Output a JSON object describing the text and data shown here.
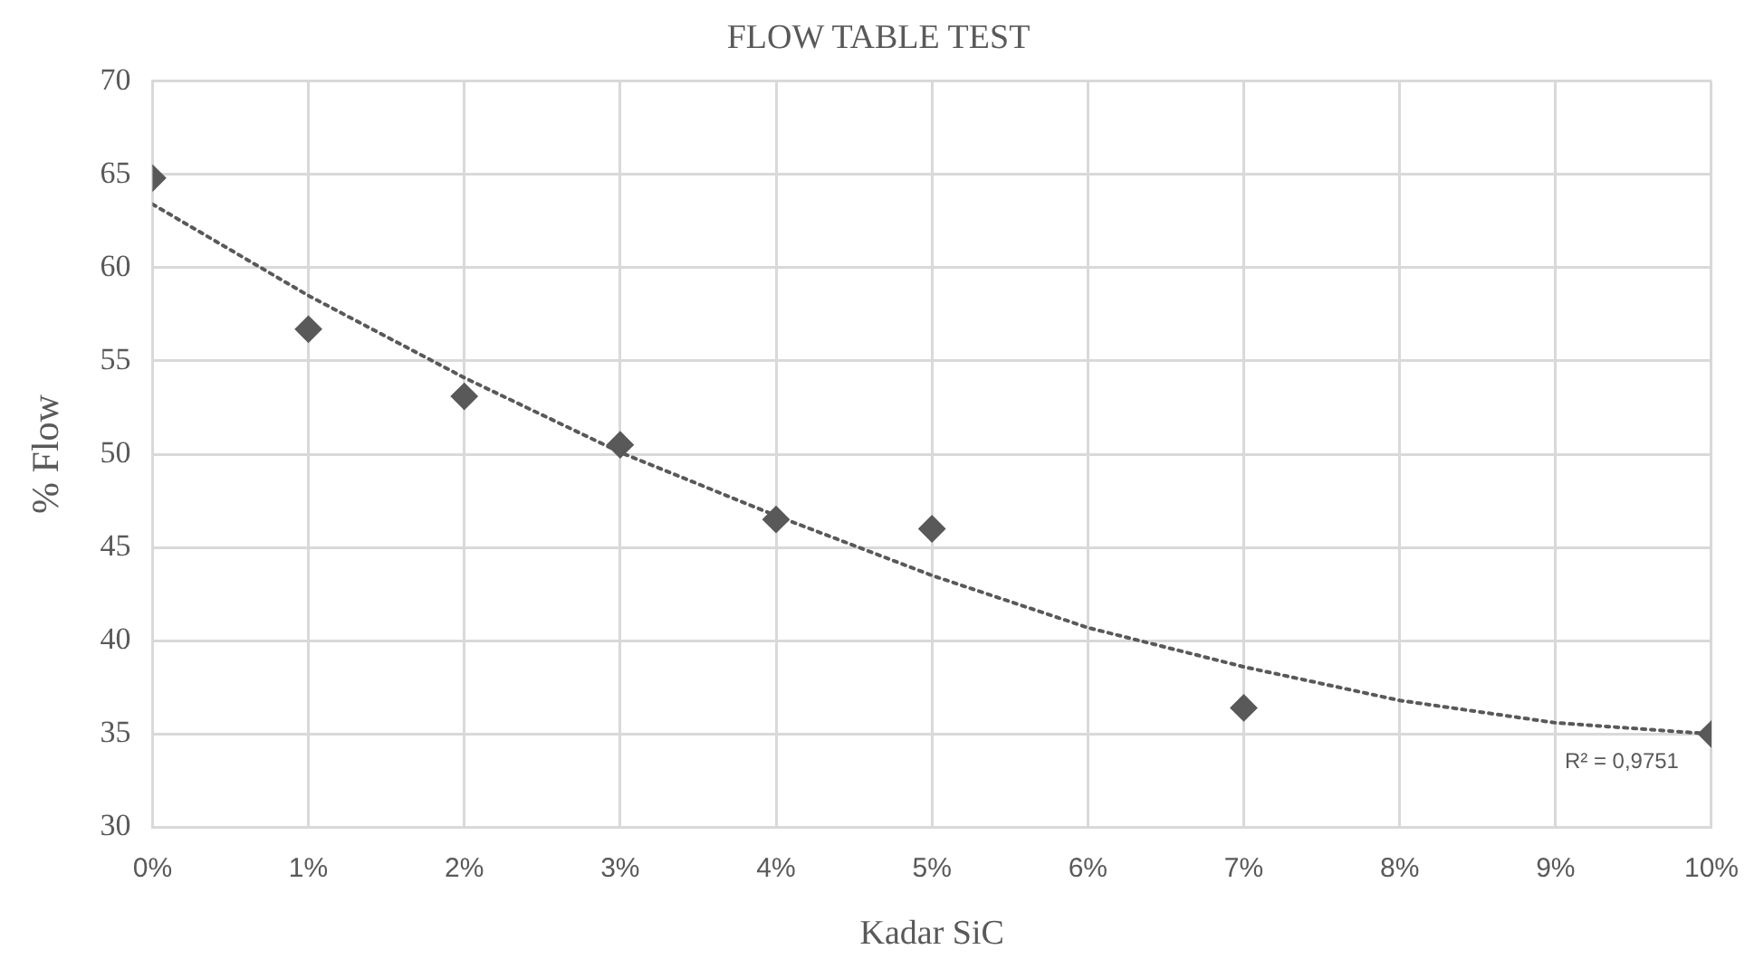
{
  "chart_data": {
    "type": "scatter",
    "title": "FLOW TABLE TEST",
    "xlabel": "Kadar SiC",
    "ylabel": "% Flow",
    "series": [
      {
        "type": "scatter",
        "color": "#595959",
        "marker": "diamond",
        "x": [
          0,
          1,
          2,
          3,
          4,
          5,
          7,
          10
        ],
        "values": [
          64.8,
          56.7,
          53.1,
          50.5,
          46.5,
          46.0,
          36.4,
          35.0
        ]
      },
      {
        "type": "line",
        "color": "#595959",
        "marker": "none",
        "line_style": "dotted",
        "x": [
          0,
          1,
          2,
          3,
          4,
          5,
          6,
          7,
          8,
          9,
          10
        ],
        "values": [
          63.4,
          58.5,
          54.1,
          50.1,
          46.7,
          43.5,
          40.7,
          38.6,
          36.8,
          35.6,
          35.0
        ]
      }
    ],
    "xlim": [
      0,
      10
    ],
    "xticks": [
      {
        "value": 0,
        "label": "0%"
      },
      {
        "value": 1,
        "label": "1%"
      },
      {
        "value": 2,
        "label": "2%"
      },
      {
        "value": 3,
        "label": "3%"
      },
      {
        "value": 4,
        "label": "4%"
      },
      {
        "value": 5,
        "label": "5%"
      },
      {
        "value": 6,
        "label": "6%"
      },
      {
        "value": 7,
        "label": "7%"
      },
      {
        "value": 8,
        "label": "8%"
      },
      {
        "value": 9,
        "label": "9%"
      },
      {
        "value": 10,
        "label": "10%"
      }
    ],
    "ylim": [
      30,
      70
    ],
    "yticks": [
      30,
      35,
      40,
      45,
      50,
      55,
      60,
      65,
      70
    ],
    "annotations": [
      "R² = 0,9751"
    ],
    "grid": true,
    "legend": false
  }
}
